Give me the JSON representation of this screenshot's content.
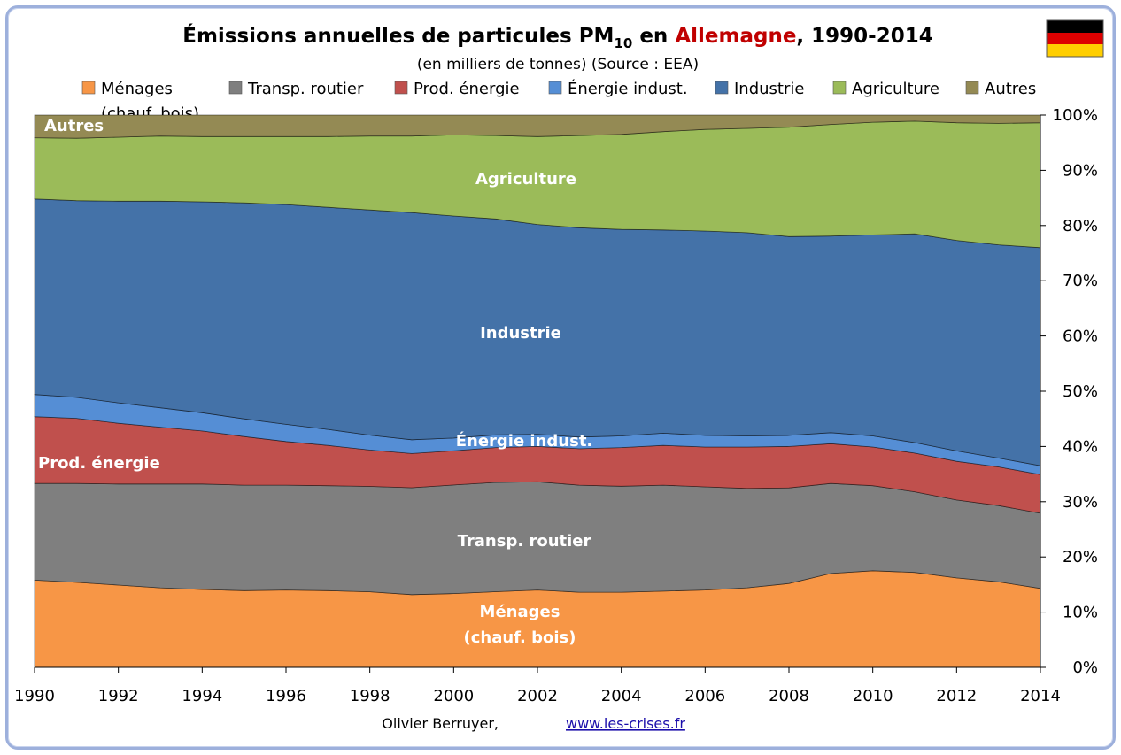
{
  "title": {
    "prefix": "Émissions annuelles de particules PM",
    "subscript": "10",
    "mid": " en ",
    "country": "Allemagne",
    "suffix": ", 1990-2014",
    "country_color": "#c00000"
  },
  "subtitle": "(en milliers de tonnes) (Source : EEA)",
  "flag": {
    "name": "germany-flag-icon",
    "colors": [
      "#000000",
      "#dd0000",
      "#ffce00"
    ]
  },
  "footer": {
    "author": "Olivier Berruyer,",
    "link": "www.les-crises.fr"
  },
  "chart_data": {
    "type": "area",
    "stacked": "percent",
    "x": [
      1990,
      1991,
      1992,
      1993,
      1994,
      1995,
      1996,
      1997,
      1998,
      1999,
      2000,
      2001,
      2002,
      2003,
      2004,
      2005,
      2006,
      2007,
      2008,
      2009,
      2010,
      2011,
      2012,
      2013,
      2014
    ],
    "xticks": [
      "1990",
      "1992",
      "1994",
      "1996",
      "1998",
      "2000",
      "2002",
      "2004",
      "2006",
      "2008",
      "2010",
      "2012",
      "2014"
    ],
    "yticks": [
      "0%",
      "10%",
      "20%",
      "30%",
      "40%",
      "50%",
      "60%",
      "70%",
      "80%",
      "90%",
      "100%"
    ],
    "ylim": [
      0,
      100
    ],
    "yaxis_position": "right",
    "grid": false,
    "legend_position": "top",
    "series": [
      {
        "name": "Ménages (chauf. bois)",
        "legend_lines": [
          "Ménages",
          "(chauf. bois)"
        ],
        "color": "#f79646",
        "values": [
          15.8,
          15.4,
          14.9,
          14.4,
          14.1,
          13.9,
          14.0,
          13.9,
          13.7,
          13.2,
          13.4,
          13.7,
          14.0,
          13.6,
          13.6,
          13.8,
          14.0,
          14.4,
          15.2,
          17.0,
          17.5,
          17.2,
          16.2,
          15.5,
          14.3
        ]
      },
      {
        "name": "Transp. routier",
        "legend_lines": [
          "Transp. routier"
        ],
        "color": "#7f7f7f",
        "values": [
          17.5,
          17.9,
          18.3,
          18.8,
          19.1,
          19.1,
          19.0,
          19.0,
          19.1,
          19.4,
          19.7,
          19.8,
          19.6,
          19.4,
          19.2,
          19.2,
          18.7,
          18.0,
          17.3,
          16.3,
          15.4,
          14.6,
          14.1,
          13.8,
          13.6
        ]
      },
      {
        "name": "Prod. énergie",
        "legend_lines": [
          "Prod. énergie"
        ],
        "color": "#c0504d",
        "values": [
          12.1,
          11.8,
          11.0,
          10.3,
          9.6,
          8.8,
          7.9,
          7.3,
          6.6,
          6.2,
          6.2,
          6.3,
          6.4,
          6.6,
          7.0,
          7.2,
          7.2,
          7.5,
          7.5,
          7.2,
          7.0,
          7.0,
          7.0,
          7.0,
          7.0
        ]
      },
      {
        "name": "Énergie indust.",
        "legend_lines": [
          "Énergie indust."
        ],
        "color": "#558ed5",
        "values": [
          4.0,
          3.8,
          3.7,
          3.5,
          3.3,
          3.2,
          3.1,
          2.9,
          2.7,
          2.5,
          2.3,
          2.3,
          2.2,
          2.1,
          2.1,
          2.2,
          2.1,
          2.0,
          2.0,
          2.0,
          2.0,
          1.9,
          1.9,
          1.6,
          1.6
        ]
      },
      {
        "name": "Industrie",
        "legend_lines": [
          "Industrie"
        ],
        "color": "#4472a8",
        "values": [
          35.4,
          35.6,
          36.5,
          37.4,
          38.2,
          39.1,
          39.8,
          40.2,
          40.8,
          41.2,
          40.3,
          39.1,
          38.0,
          37.9,
          37.4,
          36.8,
          37.0,
          36.8,
          36.0,
          35.6,
          36.4,
          37.8,
          38.1,
          38.6,
          39.5
        ]
      },
      {
        "name": "Agriculture",
        "legend_lines": [
          "Agriculture"
        ],
        "color": "#9bbb59",
        "values": [
          11.1,
          11.3,
          11.6,
          11.8,
          11.8,
          12.0,
          12.3,
          12.8,
          13.4,
          13.9,
          14.7,
          15.1,
          15.9,
          16.7,
          17.2,
          17.8,
          18.4,
          18.9,
          19.8,
          20.2,
          20.4,
          20.4,
          21.3,
          22.0,
          22.6
        ]
      },
      {
        "name": "Autres",
        "legend_lines": [
          "Autres"
        ],
        "color": "#948a54",
        "values": [
          4.1,
          4.2,
          4.0,
          3.8,
          3.9,
          3.9,
          3.9,
          3.9,
          3.8,
          3.8,
          3.6,
          3.7,
          3.9,
          3.7,
          3.5,
          3.0,
          2.6,
          2.4,
          2.2,
          1.7,
          1.3,
          1.1,
          1.4,
          1.5,
          1.4
        ]
      }
    ],
    "area_labels": [
      "Ménages",
      "(chauf. bois)",
      "Transp. routier",
      "Prod. énergie",
      "Énergie indust.",
      "Industrie",
      "Agriculture",
      "Autres"
    ]
  }
}
